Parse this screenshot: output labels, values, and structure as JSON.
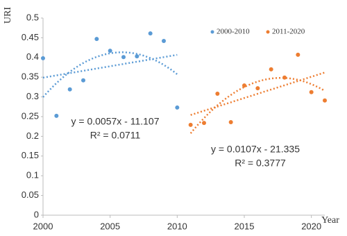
{
  "chart_data": {
    "type": "scatter",
    "y_label": "URI",
    "x_label": "Year",
    "xlim": [
      2000,
      2021
    ],
    "xticks": [
      2000,
      2005,
      2010,
      2015,
      2020
    ],
    "ylim": [
      0,
      0.5
    ],
    "yticks": [
      0,
      0.05,
      0.1,
      0.15,
      0.2,
      0.25,
      0.3,
      0.35,
      0.4,
      0.45,
      0.5
    ],
    "series": [
      {
        "name": "2000-2010",
        "color": "#5b9bd5",
        "x": [
          2000,
          2001,
          2002,
          2003,
          2004,
          2005,
          2006,
          2007,
          2008,
          2009,
          2010
        ],
        "values": [
          0.398,
          0.252,
          0.319,
          0.342,
          0.447,
          0.417,
          0.401,
          0.403,
          0.461,
          0.442,
          0.273
        ]
      },
      {
        "name": "2011-2020",
        "color": "#ed7d31",
        "x": [
          2011,
          2012,
          2013,
          2014,
          2015,
          2016,
          2017,
          2018,
          2019,
          2020,
          2021
        ],
        "values": [
          0.229,
          0.234,
          0.308,
          0.236,
          0.329,
          0.322,
          0.37,
          0.349,
          0.407,
          0.312,
          0.291
        ]
      }
    ],
    "annotations": [
      {
        "equation": "y = 0.0057x - 11.107",
        "r_squared": "R² = 0.0711"
      },
      {
        "equation": "y = 0.0107x - 21.335",
        "r_squared": "R² = 0.3777"
      }
    ]
  }
}
